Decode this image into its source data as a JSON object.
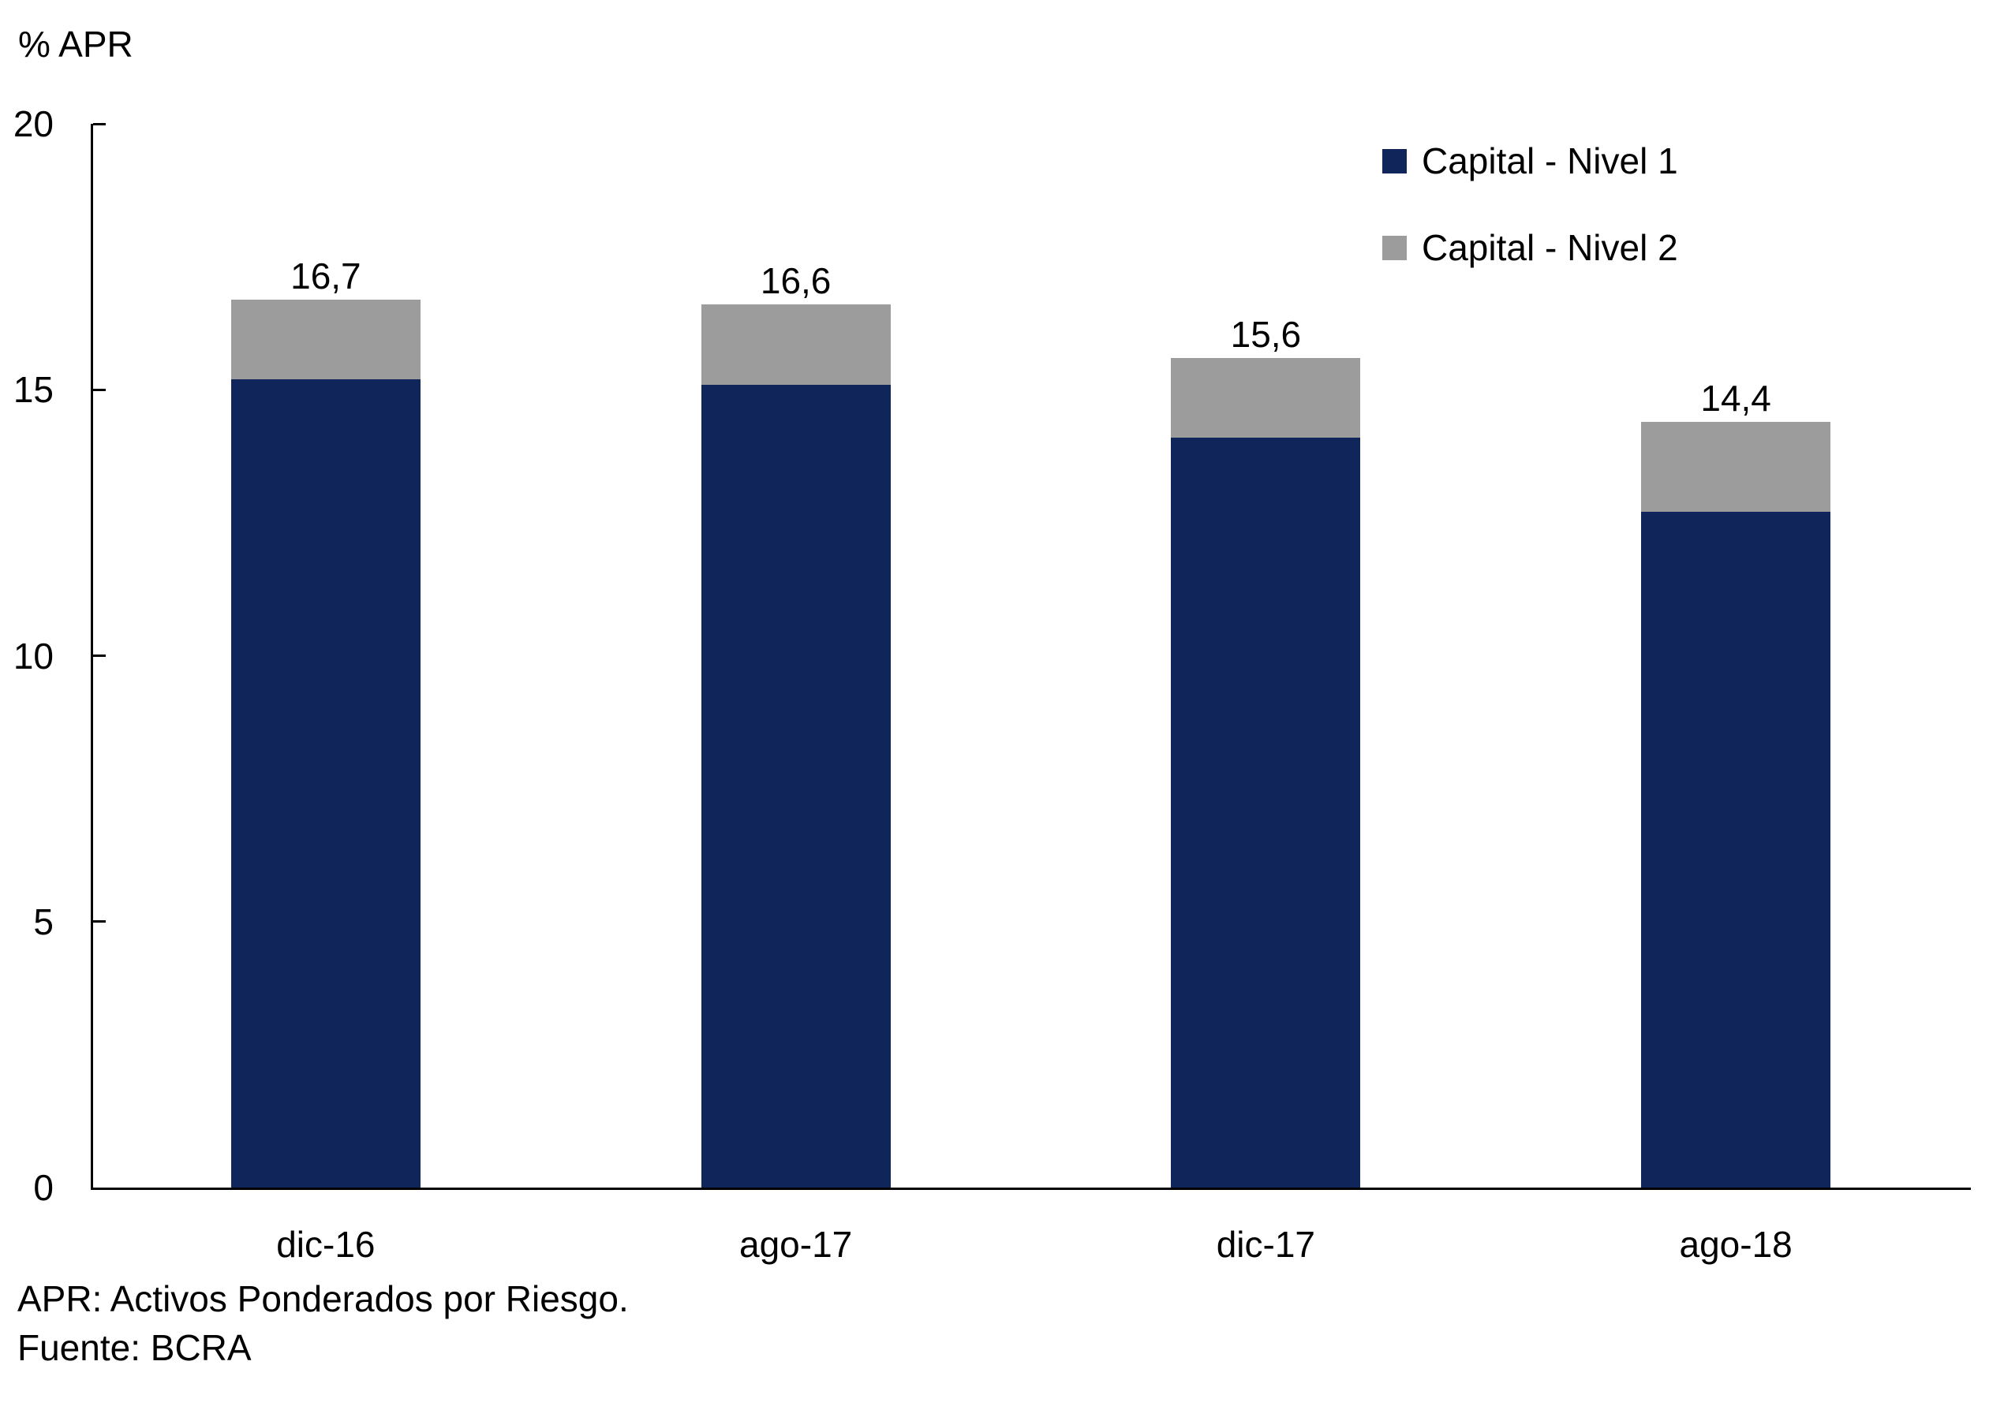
{
  "chart": {
    "y_axis_title": "% APR",
    "footnote_apr": "APR: Activos Ponderados por Riesgo.",
    "footnote_source": "Fuente: BCRA"
  },
  "colors": {
    "nivel1": "#10265A",
    "nivel2": "#9C9C9C",
    "axis": "#000000",
    "background": "#FFFFFF",
    "text": "#000000"
  },
  "chart_data": {
    "type": "bar",
    "stacked": true,
    "title": "",
    "xlabel": "",
    "ylabel": "% APR",
    "categories": [
      "dic-16",
      "ago-17",
      "dic-17",
      "ago-18"
    ],
    "series": [
      {
        "name": "Capital - Nivel 1",
        "color": "#10265A",
        "values": [
          15.2,
          15.1,
          14.1,
          12.7
        ]
      },
      {
        "name": "Capital - Nivel 2",
        "color": "#9C9C9C",
        "values": [
          1.5,
          1.5,
          1.5,
          1.7
        ]
      }
    ],
    "totals": [
      16.7,
      16.6,
      15.6,
      14.4
    ],
    "total_labels": [
      "16,7",
      "16,6",
      "15,6",
      "14,4"
    ],
    "ylim": [
      0,
      20
    ],
    "yticks": [
      0,
      5,
      10,
      15,
      20
    ],
    "ytick_labels": [
      "0",
      "5",
      "10",
      "15",
      "20"
    ],
    "grid": false,
    "legend_position": "top-right"
  }
}
